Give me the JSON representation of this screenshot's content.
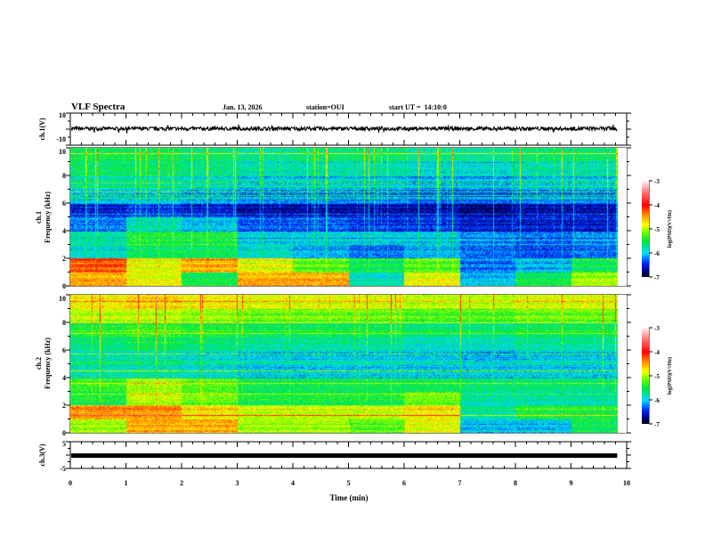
{
  "header": {
    "title": "VLF Spectra",
    "date": "Jan. 13, 2026",
    "station": "station=OUI",
    "start_ut": "start UT =  14:10:0"
  },
  "chart_data": [
    {
      "type": "line",
      "name": "ch1 waveform",
      "ylabel": "ch.1(V)",
      "ylim": [
        -10,
        10
      ],
      "yticks": [
        "10",
        "-10"
      ],
      "x_range_min": [
        0,
        9.83
      ],
      "approx_mean_v": 0.3,
      "approx_amplitude_v": 1.2
    },
    {
      "type": "heatmap",
      "name": "ch1 spectrogram",
      "ylabel": "ch.1\nFrequency (kHz)",
      "ylabel_lines": [
        "ch.1",
        "Frequency (kHz)"
      ],
      "ylim": [
        0,
        10
      ],
      "yticks": [
        "0",
        "2",
        "4",
        "6",
        "8",
        "10"
      ],
      "x_range_min": [
        0,
        9.83
      ],
      "colorbar": {
        "label": "log(PSD)(V²/Hz)",
        "range": [
          -7,
          -3
        ],
        "ticks": [
          "-3",
          "-4",
          "-5",
          "-6",
          "-7"
        ]
      },
      "time_bins_min": [
        0.5,
        1.5,
        2.5,
        3.5,
        4.5,
        5.5,
        6.5,
        7.5,
        8.5,
        9.5
      ],
      "freq_bins_khz": [
        0.5,
        1.5,
        2.5,
        3.5,
        4.5,
        5.5,
        6.5,
        7.5,
        8.5,
        9.5
      ],
      "log_psd": [
        [
          -4.5,
          -4.8,
          -5.5,
          -4.5,
          -4.5,
          -5.8,
          -4.8,
          -6.0,
          -5.5,
          -5.0
        ],
        [
          -4.2,
          -4.8,
          -4.5,
          -4.8,
          -5.2,
          -5.5,
          -5.2,
          -6.2,
          -6.0,
          -5.5
        ],
        [
          -5.8,
          -5.5,
          -5.5,
          -5.8,
          -6.0,
          -6.2,
          -6.0,
          -6.2,
          -6.3,
          -6.2
        ],
        [
          -5.8,
          -5.5,
          -5.5,
          -6.0,
          -6.0,
          -6.0,
          -6.0,
          -6.2,
          -6.3,
          -6.2
        ],
        [
          -6.2,
          -5.8,
          -6.0,
          -6.3,
          -6.3,
          -6.4,
          -6.4,
          -6.5,
          -6.5,
          -6.5
        ],
        [
          -6.5,
          -6.4,
          -6.5,
          -6.6,
          -6.6,
          -6.6,
          -6.6,
          -6.7,
          -6.6,
          -6.6
        ],
        [
          -6.0,
          -6.0,
          -6.1,
          -6.2,
          -6.2,
          -6.2,
          -6.3,
          -6.3,
          -6.2,
          -6.2
        ],
        [
          -5.8,
          -5.8,
          -5.9,
          -6.0,
          -6.0,
          -6.0,
          -6.1,
          -6.1,
          -6.0,
          -6.0
        ],
        [
          -5.6,
          -5.6,
          -5.7,
          -5.8,
          -5.8,
          -5.8,
          -5.9,
          -5.9,
          -5.8,
          -5.8
        ],
        [
          -5.5,
          -5.5,
          -5.6,
          -5.7,
          -5.6,
          -5.6,
          -5.7,
          -5.7,
          -5.6,
          -5.6
        ]
      ]
    },
    {
      "type": "heatmap",
      "name": "ch2 spectrogram",
      "ylabel_lines": [
        "ch.2",
        "Frequency (kHz)"
      ],
      "ylim": [
        0,
        10
      ],
      "yticks": [
        "0",
        "2",
        "4",
        "6",
        "8",
        "10"
      ],
      "x_range_min": [
        0,
        9.83
      ],
      "colorbar": {
        "label": "log(PSD)(V²/Hz)",
        "range": [
          -7,
          -3
        ],
        "ticks": [
          "-3",
          "-4",
          "-5",
          "-6",
          "-7"
        ]
      },
      "time_bins_min": [
        0.5,
        1.5,
        2.5,
        3.5,
        4.5,
        5.5,
        6.5,
        7.5,
        8.5,
        9.5
      ],
      "freq_bins_khz": [
        0.5,
        1.5,
        2.5,
        3.5,
        4.5,
        5.5,
        6.5,
        7.5,
        8.5,
        9.5
      ],
      "log_psd": [
        [
          -5.0,
          -4.5,
          -4.5,
          -5.0,
          -5.0,
          -5.2,
          -4.8,
          -6.0,
          -6.0,
          -5.5
        ],
        [
          -4.5,
          -4.5,
          -4.8,
          -5.0,
          -5.0,
          -5.0,
          -4.8,
          -5.8,
          -5.5,
          -5.5
        ],
        [
          -5.5,
          -5.0,
          -5.2,
          -5.5,
          -5.5,
          -5.5,
          -5.2,
          -5.8,
          -5.8,
          -5.8
        ],
        [
          -5.3,
          -5.0,
          -5.2,
          -5.5,
          -5.5,
          -5.5,
          -5.5,
          -5.6,
          -5.6,
          -5.6
        ],
        [
          -5.8,
          -5.8,
          -5.9,
          -6.0,
          -6.0,
          -6.0,
          -6.0,
          -6.0,
          -6.0,
          -6.0
        ],
        [
          -5.8,
          -5.8,
          -5.9,
          -6.0,
          -6.0,
          -6.0,
          -6.0,
          -6.1,
          -6.0,
          -6.0
        ],
        [
          -5.6,
          -5.5,
          -5.6,
          -5.7,
          -5.7,
          -5.7,
          -5.8,
          -5.8,
          -5.7,
          -5.7
        ],
        [
          -5.4,
          -5.3,
          -5.4,
          -5.5,
          -5.5,
          -5.5,
          -5.6,
          -5.6,
          -5.5,
          -5.5
        ],
        [
          -5.0,
          -5.0,
          -5.1,
          -5.2,
          -5.2,
          -5.2,
          -5.3,
          -5.3,
          -5.2,
          -5.2
        ],
        [
          -4.8,
          -4.7,
          -4.8,
          -4.9,
          -4.9,
          -4.9,
          -5.0,
          -5.0,
          -4.9,
          -4.9
        ]
      ]
    },
    {
      "type": "line",
      "name": "ch3 waveform",
      "ylabel": "ch.3(V)",
      "ylim": [
        -5,
        5
      ],
      "yticks": [
        "5",
        "-5"
      ],
      "x_range_min": [
        0,
        9.83
      ],
      "approx_value_v": -0.2
    }
  ],
  "xaxis": {
    "label": "Time (min)",
    "range": [
      0,
      10
    ],
    "ticks": [
      "0",
      "1",
      "2",
      "3",
      "4",
      "5",
      "6",
      "7",
      "8",
      "9",
      "10"
    ]
  }
}
